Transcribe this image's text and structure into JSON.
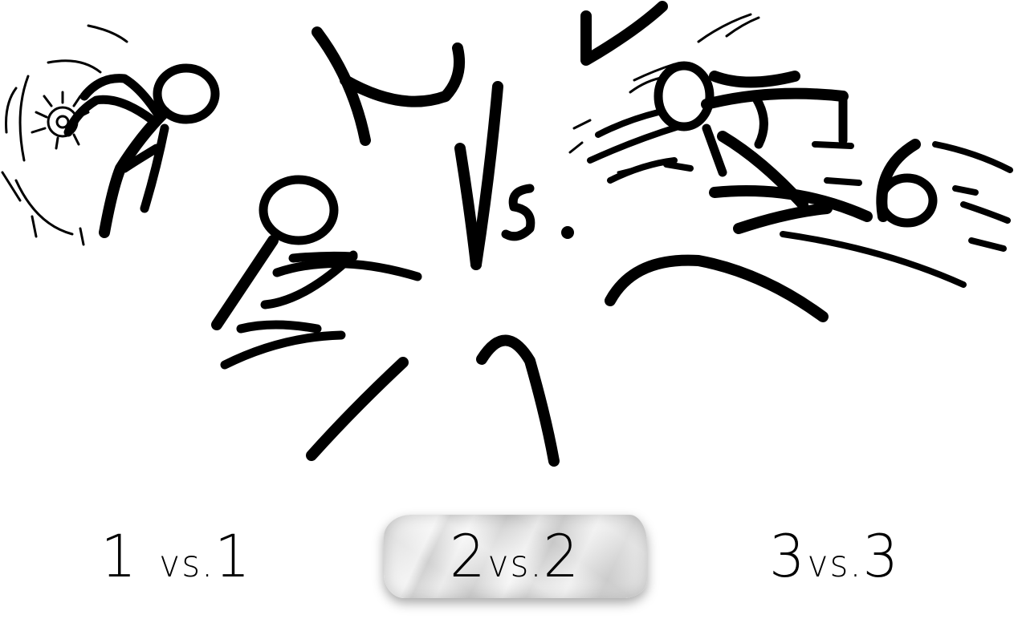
{
  "screen": {
    "background_color": "#ffffff",
    "ink_color": "#000000"
  },
  "title_art": {
    "center_text": "Vs.",
    "icons": [
      "shield-fighter-icon",
      "stick-fighter-left-icon",
      "stick-fighter-right-icon",
      "impact-burst-icon",
      "speed-lines-icon"
    ]
  },
  "mode_menu": {
    "selected": "2vs2",
    "buttons": [
      {
        "id": "1vs1",
        "left_num": "1",
        "vs": "vs.",
        "right_num": "1"
      },
      {
        "id": "2vs2",
        "left_num": "2",
        "vs": "vs.",
        "right_num": "2"
      },
      {
        "id": "3vs3",
        "left_num": "3",
        "vs": "vs.",
        "right_num": "3"
      }
    ],
    "selected_highlight_color": "#e4e4e4"
  }
}
